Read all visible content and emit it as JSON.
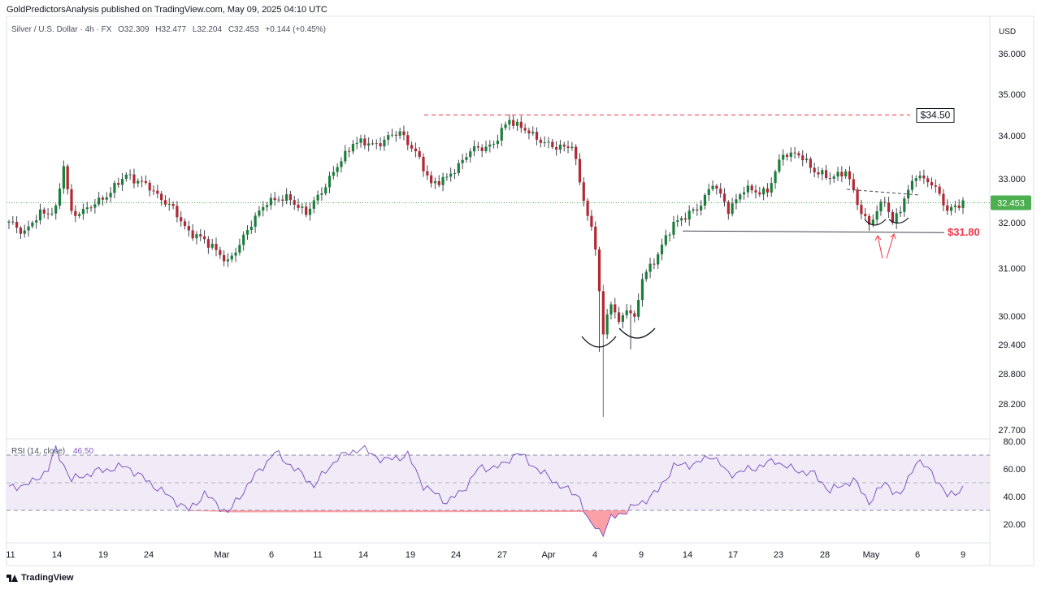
{
  "header": {
    "publisher": "GoldPredictorsAnalysis published on TradingView.com, May 09, 2025 04:10 UTC"
  },
  "symbol": {
    "name": "Silver / U.S. Dollar · 4h · FX",
    "open": "O32.309",
    "high": "H32.477",
    "low": "L32.204",
    "close": "C32.453",
    "change": "+0.144 (+0.45%)"
  },
  "footer": {
    "brand": "TradingView"
  },
  "chart_data": [
    {
      "type": "candlestick",
      "currency_label": "USD",
      "ylim": [
        27.55,
        36.45
      ],
      "y_ticks": [
        "36.000",
        "35.000",
        "34.000",
        "33.000",
        "32.000",
        "31.000",
        "30.000",
        "29.400",
        "28.800",
        "28.200",
        "27.700"
      ],
      "x_ticks": [
        "11",
        "14",
        "19",
        "24",
        "Mar",
        "6",
        "11",
        "14",
        "19",
        "24",
        "27",
        "Apr",
        "4",
        "9",
        "14",
        "17",
        "23",
        "28",
        "May",
        "6",
        "9"
      ],
      "last_price": "32.453",
      "resistance_label": "$34.50",
      "resistance_value": 34.5,
      "support_label": "$31.80",
      "support_value": 31.8,
      "key_points": [
        {
          "x": 0,
          "y": 32.0
        },
        {
          "x": 4,
          "y": 31.8
        },
        {
          "x": 8,
          "y": 32.2
        },
        {
          "x": 12,
          "y": 32.3
        },
        {
          "x": 14,
          "y": 33.3
        },
        {
          "x": 16,
          "y": 32.2
        },
        {
          "x": 20,
          "y": 32.3
        },
        {
          "x": 26,
          "y": 32.7
        },
        {
          "x": 30,
          "y": 33.1
        },
        {
          "x": 36,
          "y": 32.8
        },
        {
          "x": 42,
          "y": 32.3
        },
        {
          "x": 46,
          "y": 31.8
        },
        {
          "x": 52,
          "y": 31.5
        },
        {
          "x": 56,
          "y": 31.1
        },
        {
          "x": 60,
          "y": 31.7
        },
        {
          "x": 66,
          "y": 32.5
        },
        {
          "x": 72,
          "y": 32.55
        },
        {
          "x": 76,
          "y": 32.2
        },
        {
          "x": 82,
          "y": 33.0
        },
        {
          "x": 88,
          "y": 33.85
        },
        {
          "x": 94,
          "y": 33.8
        },
        {
          "x": 100,
          "y": 34.1
        },
        {
          "x": 104,
          "y": 33.6
        },
        {
          "x": 108,
          "y": 32.9
        },
        {
          "x": 112,
          "y": 33.0
        },
        {
          "x": 118,
          "y": 33.65
        },
        {
          "x": 124,
          "y": 33.8
        },
        {
          "x": 128,
          "y": 34.4
        },
        {
          "x": 134,
          "y": 34.0
        },
        {
          "x": 140,
          "y": 33.7
        },
        {
          "x": 144,
          "y": 33.8
        },
        {
          "x": 147,
          "y": 32.5
        },
        {
          "x": 150,
          "y": 31.5
        },
        {
          "x": 152,
          "y": 29.6
        },
        {
          "x": 154,
          "y": 30.3
        },
        {
          "x": 156,
          "y": 29.85
        },
        {
          "x": 158,
          "y": 30.2
        },
        {
          "x": 160,
          "y": 29.9
        },
        {
          "x": 162,
          "y": 30.8
        },
        {
          "x": 166,
          "y": 31.3
        },
        {
          "x": 170,
          "y": 32.0
        },
        {
          "x": 176,
          "y": 32.3
        },
        {
          "x": 180,
          "y": 32.9
        },
        {
          "x": 184,
          "y": 32.3
        },
        {
          "x": 188,
          "y": 32.75
        },
        {
          "x": 194,
          "y": 32.7
        },
        {
          "x": 198,
          "y": 33.6
        },
        {
          "x": 202,
          "y": 33.55
        },
        {
          "x": 206,
          "y": 33.2
        },
        {
          "x": 210,
          "y": 33.0
        },
        {
          "x": 214,
          "y": 33.2
        },
        {
          "x": 218,
          "y": 32.2
        },
        {
          "x": 220,
          "y": 32.0
        },
        {
          "x": 224,
          "y": 32.5
        },
        {
          "x": 226,
          "y": 32.0
        },
        {
          "x": 230,
          "y": 32.7
        },
        {
          "x": 232,
          "y": 33.1
        },
        {
          "x": 236,
          "y": 32.9
        },
        {
          "x": 240,
          "y": 32.3
        },
        {
          "x": 244,
          "y": 32.45
        }
      ],
      "rsi": {
        "label": "RSI (14, close)",
        "value": "46.50",
        "ylim": [
          10,
          80
        ],
        "upper_band": 70,
        "lower_band": 30,
        "middle": 50,
        "y_ticks": [
          "80.00",
          "60.00",
          "40.00",
          "20.00"
        ],
        "key_points": [
          {
            "x": 0,
            "y": 46
          },
          {
            "x": 6,
            "y": 50
          },
          {
            "x": 10,
            "y": 60
          },
          {
            "x": 12,
            "y": 74
          },
          {
            "x": 16,
            "y": 52
          },
          {
            "x": 22,
            "y": 58
          },
          {
            "x": 30,
            "y": 62
          },
          {
            "x": 36,
            "y": 50
          },
          {
            "x": 42,
            "y": 38
          },
          {
            "x": 46,
            "y": 30
          },
          {
            "x": 50,
            "y": 42
          },
          {
            "x": 56,
            "y": 28
          },
          {
            "x": 62,
            "y": 52
          },
          {
            "x": 68,
            "y": 72
          },
          {
            "x": 74,
            "y": 58
          },
          {
            "x": 78,
            "y": 48
          },
          {
            "x": 84,
            "y": 68
          },
          {
            "x": 90,
            "y": 75
          },
          {
            "x": 96,
            "y": 66
          },
          {
            "x": 102,
            "y": 70
          },
          {
            "x": 106,
            "y": 48
          },
          {
            "x": 112,
            "y": 36
          },
          {
            "x": 116,
            "y": 44
          },
          {
            "x": 120,
            "y": 60
          },
          {
            "x": 126,
            "y": 62
          },
          {
            "x": 130,
            "y": 72
          },
          {
            "x": 136,
            "y": 58
          },
          {
            "x": 142,
            "y": 46
          },
          {
            "x": 146,
            "y": 40
          },
          {
            "x": 148,
            "y": 22
          },
          {
            "x": 152,
            "y": 14
          },
          {
            "x": 154,
            "y": 24
          },
          {
            "x": 158,
            "y": 30
          },
          {
            "x": 162,
            "y": 36
          },
          {
            "x": 166,
            "y": 44
          },
          {
            "x": 170,
            "y": 62
          },
          {
            "x": 176,
            "y": 64
          },
          {
            "x": 180,
            "y": 70
          },
          {
            "x": 184,
            "y": 56
          },
          {
            "x": 190,
            "y": 60
          },
          {
            "x": 196,
            "y": 66
          },
          {
            "x": 200,
            "y": 60
          },
          {
            "x": 206,
            "y": 56
          },
          {
            "x": 210,
            "y": 44
          },
          {
            "x": 216,
            "y": 52
          },
          {
            "x": 220,
            "y": 36
          },
          {
            "x": 224,
            "y": 50
          },
          {
            "x": 228,
            "y": 40
          },
          {
            "x": 232,
            "y": 66
          },
          {
            "x": 236,
            "y": 58
          },
          {
            "x": 240,
            "y": 40
          },
          {
            "x": 244,
            "y": 46
          }
        ]
      }
    }
  ]
}
